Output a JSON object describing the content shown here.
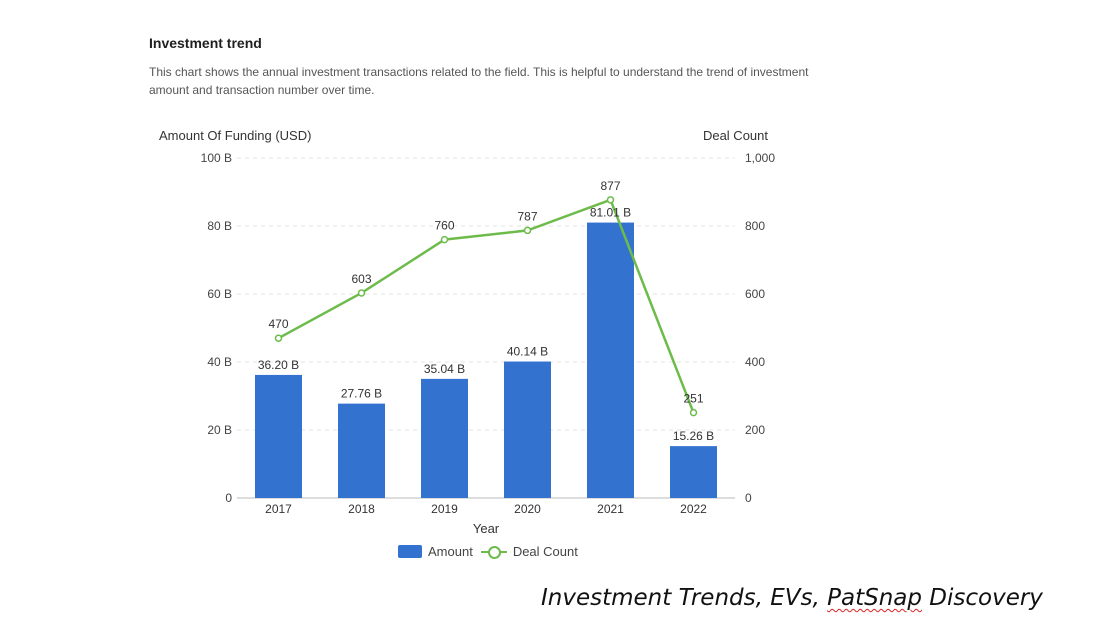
{
  "header": {
    "title": "Investment trend",
    "description": "This chart shows the annual investment transactions related to the field. This is helpful to understand the trend of investment amount and transaction number over time."
  },
  "chart_data": {
    "type": "bar",
    "categories": [
      "2017",
      "2018",
      "2019",
      "2020",
      "2021",
      "2022"
    ],
    "series": [
      {
        "name": "Amount",
        "type": "bar",
        "axis": "left",
        "values": [
          36.2,
          27.76,
          35.04,
          40.14,
          81.01,
          15.26
        ],
        "labels": [
          "36.20 B",
          "27.76 B",
          "35.04 B",
          "40.14 B",
          "81.01 B",
          "15.26 B"
        ],
        "color": "#3372cf"
      },
      {
        "name": "Deal Count",
        "type": "line",
        "axis": "right",
        "values": [
          470,
          603,
          760,
          787,
          877,
          251
        ],
        "labels": [
          "470",
          "603",
          "760",
          "787",
          "877",
          "251"
        ],
        "color": "#6dbb4b"
      }
    ],
    "xlabel": "Year",
    "ylabel_left": "Amount Of Funding (USD)",
    "ylabel_right": "Deal Count",
    "ylim_left": [
      0,
      100
    ],
    "ylim_right": [
      0,
      1000
    ],
    "yticks_left": [
      "0",
      "20 B",
      "40 B",
      "60 B",
      "80 B",
      "100 B"
    ],
    "yticks_right": [
      "0",
      "200",
      "400",
      "600",
      "800",
      "1,000"
    ],
    "grid": true,
    "legend_position": "bottom-center"
  },
  "legend": {
    "amount": "Amount",
    "deal_count": "Deal Count"
  },
  "caption": {
    "text_main": "Investment Trends, EVs, ",
    "text_brand": "PatSnap",
    "text_tail": " Discovery"
  }
}
